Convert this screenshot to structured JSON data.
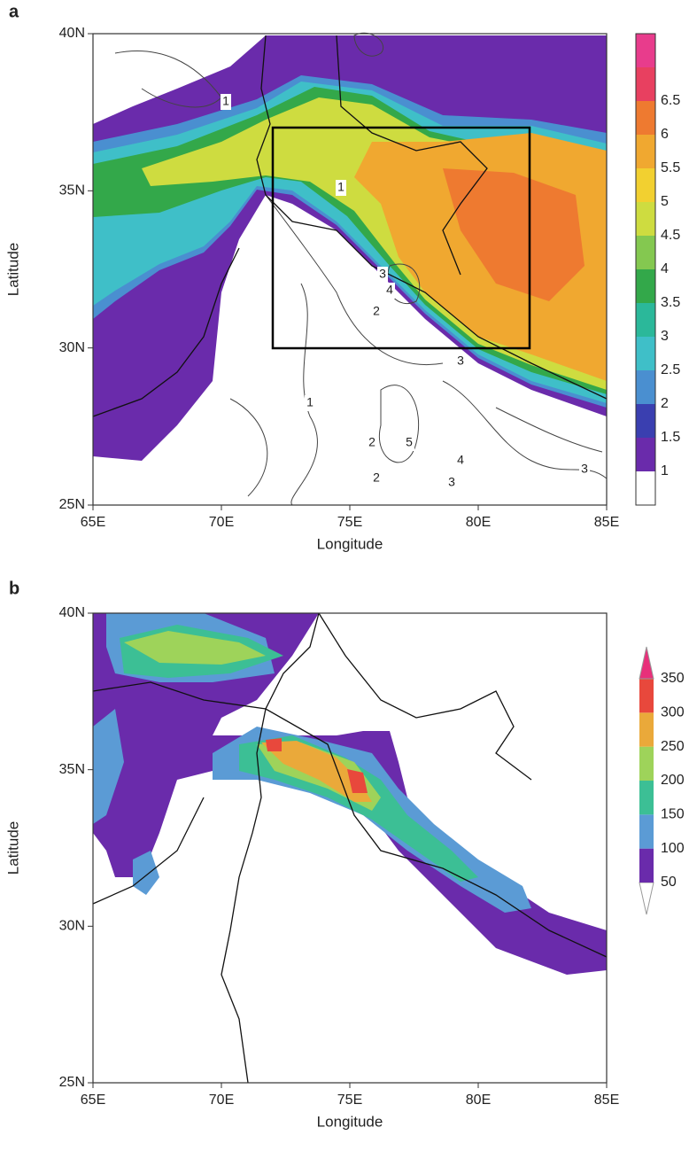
{
  "panels": [
    {
      "label": "a",
      "x_axis": {
        "title": "Longitude",
        "ticks": [
          "65E",
          "70E",
          "75E",
          "80E",
          "85E"
        ]
      },
      "y_axis": {
        "title": "Latitude",
        "ticks": [
          "25N",
          "30N",
          "35N",
          "40N"
        ]
      },
      "colorbar": {
        "labels": [
          "1",
          "1.5",
          "2",
          "2.5",
          "3",
          "3.5",
          "4",
          "4.5",
          "5",
          "5.5",
          "6",
          "6.5"
        ],
        "colors": [
          "#ffffff",
          "#6a2bab",
          "#3a3fb0",
          "#4a8fd0",
          "#3fbfc8",
          "#2bb89a",
          "#33a84a",
          "#84c850",
          "#cedc40",
          "#f2d030",
          "#f0a830",
          "#ee7a30",
          "#e84060",
          "#e83c8c"
        ]
      },
      "contour_labels": [
        "1",
        "1",
        "3",
        "4",
        "2",
        "3",
        "1",
        "2",
        "5",
        "4",
        "3",
        "2",
        "3"
      ]
    },
    {
      "label": "b",
      "x_axis": {
        "title": "Longitude",
        "ticks": [
          "65E",
          "70E",
          "75E",
          "80E",
          "85E"
        ]
      },
      "y_axis": {
        "title": "Latitude",
        "ticks": [
          "25N",
          "30N",
          "35N",
          "40N"
        ]
      },
      "colorbar": {
        "labels": [
          "50",
          "100",
          "150",
          "200",
          "250",
          "300",
          "350"
        ],
        "colors": [
          "#ffffff",
          "#6a2bab",
          "#5b9bd5",
          "#3cbf95",
          "#9ed35a",
          "#eaa93a",
          "#e8483c",
          "#e8307a"
        ]
      }
    }
  ]
}
